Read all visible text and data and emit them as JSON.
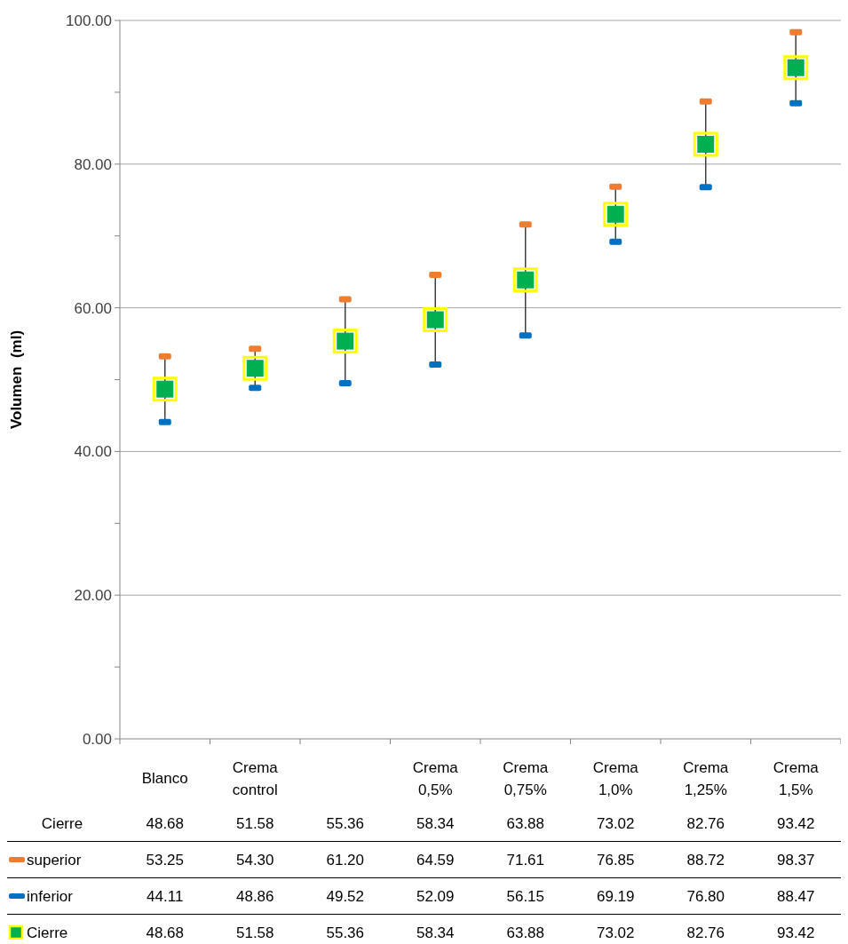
{
  "chart_data": {
    "type": "scatter",
    "ylabel": "Volumen  (ml)",
    "categories": [
      "Blanco",
      "Crema control",
      null,
      "Crema 0,5%",
      "Crema 0,75%",
      "Crema 1,0%",
      "Crema 1,25%",
      "Crema 1,5%"
    ],
    "ylim": [
      0,
      100
    ],
    "yticks": [
      {
        "value": 0,
        "label": "0.00"
      },
      {
        "value": 10,
        "label": null
      },
      {
        "value": 20,
        "label": "20.00"
      },
      {
        "value": 30,
        "label": null
      },
      {
        "value": 40,
        "label": "40.00"
      },
      {
        "value": 50,
        "label": null
      },
      {
        "value": 60,
        "label": "60.00"
      },
      {
        "value": 70,
        "label": null
      },
      {
        "value": 80,
        "label": "80.00"
      },
      {
        "value": 90,
        "label": null
      },
      {
        "value": 100,
        "label": "100.00"
      }
    ],
    "grid": "y",
    "legend": "bottom",
    "annotations": [
      "Cierre",
      "48.68",
      "51.58",
      "55.36",
      "58.34",
      "63.88",
      "73.02",
      "82.76",
      "93.42"
    ],
    "series": [
      {
        "name": "superior",
        "color": "#ed7d31",
        "values": [
          53.25,
          54.3,
          61.2,
          64.59,
          71.61,
          76.85,
          88.72,
          98.37
        ],
        "value_labels": [
          "53.25",
          "54.30",
          "61.20",
          "64.59",
          "71.61",
          "76.85",
          "88.72",
          "98.37"
        ]
      },
      {
        "name": "inferior",
        "color": "#0070c0",
        "values": [
          44.11,
          48.86,
          49.52,
          52.09,
          56.15,
          69.19,
          76.8,
          88.47
        ],
        "value_labels": [
          "44.11",
          "48.86",
          "49.52",
          "52.09",
          "56.15",
          "69.19",
          "76.80",
          "88.47"
        ]
      },
      {
        "name": "Cierre",
        "marker": "square",
        "color": "#00b050",
        "values": [
          48.68,
          51.58,
          55.36,
          58.34,
          63.88,
          73.02,
          82.76,
          93.42
        ],
        "value_labels": [
          "48.68",
          "51.58",
          "55.36",
          "58.34",
          "63.88",
          "73.02",
          "82.76",
          "93.42"
        ]
      }
    ]
  }
}
